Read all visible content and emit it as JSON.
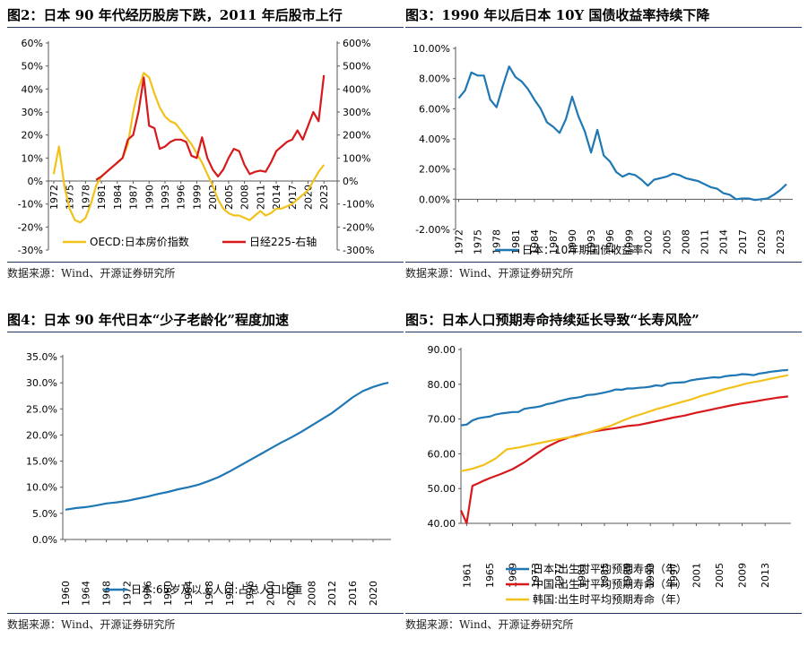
{
  "source_label": "数据来源：Wind、开源证券研究所",
  "chart_data": [
    {
      "id": "fig2",
      "type": "line",
      "title": "图2：日本 90 年代经历股房下跌，2011 年后股市上行",
      "x_ticks": [
        "1972",
        "1975",
        "1978",
        "1981",
        "1984",
        "1987",
        "1990",
        "1993",
        "1996",
        "1999",
        "2002",
        "2005",
        "2008",
        "2011",
        "2014",
        "2017",
        "2020",
        "2023"
      ],
      "y_left_ticks": [
        "-30%",
        "-20%",
        "-10%",
        "0%",
        "10%",
        "20%",
        "30%",
        "40%",
        "50%",
        "60%"
      ],
      "y_right_ticks": [
        "-300%",
        "-200%",
        "-100%",
        "0%",
        "100%",
        "200%",
        "300%",
        "400%",
        "500%",
        "600%"
      ],
      "ylim_left": [
        -30,
        60
      ],
      "ylim_right": [
        -300,
        600
      ],
      "series": [
        {
          "name": "OECD:日本房价指数",
          "axis": "left",
          "color": "#F2C21A",
          "x": [
            1972,
            1973,
            1974,
            1975,
            1976,
            1977,
            1978,
            1979,
            1980,
            1981,
            1982,
            1983,
            1984,
            1985,
            1986,
            1987,
            1988,
            1989,
            1990,
            1991,
            1992,
            1993,
            1994,
            1995,
            1996,
            1997,
            1998,
            1999,
            2000,
            2001,
            2002,
            2003,
            2004,
            2005,
            2006,
            2007,
            2008,
            2009,
            2010,
            2011,
            2012,
            2013,
            2014,
            2015,
            2016,
            2017,
            2018,
            2019,
            2020,
            2021,
            2022,
            2023
          ],
          "values": [
            3,
            15,
            -2,
            -12,
            -17,
            -18,
            -16,
            -10,
            -2,
            2,
            4,
            6,
            8,
            10,
            16,
            30,
            40,
            47,
            45,
            38,
            32,
            28,
            26,
            25,
            22,
            19,
            16,
            12,
            8,
            3,
            -2,
            -8,
            -12,
            -14,
            -15,
            -15,
            -16,
            -17,
            -15,
            -13,
            -15,
            -14,
            -12,
            -12,
            -11,
            -10,
            -8,
            -6,
            -4,
            0,
            4,
            7
          ]
        },
        {
          "name": "日经225-右轴",
          "axis": "right",
          "color": "#D7191C",
          "x": [
            1980,
            1981,
            1982,
            1983,
            1984,
            1985,
            1986,
            1987,
            1988,
            1989,
            1990,
            1991,
            1992,
            1993,
            1994,
            1995,
            1996,
            1997,
            1998,
            1999,
            2000,
            2001,
            2002,
            2003,
            2004,
            2005,
            2006,
            2007,
            2008,
            2009,
            2010,
            2011,
            2012,
            2013,
            2014,
            2015,
            2016,
            2017,
            2018,
            2019,
            2020,
            2021,
            2022,
            2023
          ],
          "values": [
            5,
            20,
            40,
            60,
            80,
            100,
            180,
            200,
            300,
            450,
            240,
            230,
            140,
            150,
            170,
            180,
            180,
            170,
            110,
            100,
            190,
            100,
            50,
            20,
            50,
            100,
            140,
            130,
            70,
            30,
            40,
            45,
            40,
            80,
            130,
            150,
            170,
            180,
            220,
            180,
            240,
            300,
            260,
            460
          ]
        }
      ]
    },
    {
      "id": "fig3",
      "type": "line",
      "title": "图3：1990 年以后日本 10Y 国债收益率持续下降",
      "x_ticks": [
        "1972",
        "1975",
        "1978",
        "1981",
        "1984",
        "1987",
        "1990",
        "1993",
        "1996",
        "1999",
        "2002",
        "2005",
        "2008",
        "2011",
        "2014",
        "2017",
        "2020",
        "2023"
      ],
      "y_ticks": [
        "-2.00%",
        "0.00%",
        "2.00%",
        "4.00%",
        "6.00%",
        "8.00%",
        "10.00%"
      ],
      "ylim": [
        -2,
        10
      ],
      "series": [
        {
          "name": "日本：10年期国债收益率",
          "color": "#1F77B4",
          "x": [
            1972,
            1973,
            1974,
            1975,
            1976,
            1977,
            1978,
            1979,
            1980,
            1981,
            1982,
            1983,
            1984,
            1985,
            1986,
            1987,
            1988,
            1989,
            1990,
            1991,
            1992,
            1993,
            1994,
            1995,
            1996,
            1997,
            1998,
            1999,
            2000,
            2001,
            2002,
            2003,
            2004,
            2005,
            2006,
            2007,
            2008,
            2009,
            2010,
            2011,
            2012,
            2013,
            2014,
            2015,
            2016,
            2017,
            2018,
            2019,
            2020,
            2021,
            2022,
            2023,
            2024
          ],
          "values": [
            6.7,
            7.2,
            8.4,
            8.2,
            8.2,
            6.6,
            6.1,
            7.5,
            8.8,
            8.1,
            7.8,
            7.3,
            6.6,
            6.0,
            5.1,
            4.8,
            4.4,
            5.3,
            6.8,
            5.5,
            4.5,
            3.1,
            4.6,
            2.9,
            2.5,
            1.8,
            1.5,
            1.7,
            1.6,
            1.3,
            0.9,
            1.3,
            1.4,
            1.5,
            1.7,
            1.6,
            1.4,
            1.3,
            1.2,
            1.0,
            0.8,
            0.7,
            0.4,
            0.3,
            0.0,
            0.05,
            0.05,
            -0.05,
            0.0,
            0.05,
            0.3,
            0.6,
            1.0
          ]
        }
      ]
    },
    {
      "id": "fig4",
      "type": "line",
      "title": "图4：日本 90 年代日本“少子老龄化”程度加速",
      "x_ticks": [
        "1960",
        "1964",
        "1968",
        "1972",
        "1976",
        "1980",
        "1984",
        "1988",
        "1992",
        "1996",
        "2000",
        "2004",
        "2008",
        "2012",
        "2016",
        "2020"
      ],
      "y_ticks": [
        "0.0%",
        "5.0%",
        "10.0%",
        "15.0%",
        "20.0%",
        "25.0%",
        "30.0%",
        "35.0%"
      ],
      "ylim": [
        0,
        35
      ],
      "series": [
        {
          "name": "日本:65岁及以上人口:占总人口比重",
          "color": "#1F77B4",
          "x": [
            1960,
            1962,
            1964,
            1966,
            1968,
            1970,
            1972,
            1974,
            1976,
            1978,
            1980,
            1982,
            1984,
            1986,
            1988,
            1990,
            1992,
            1994,
            1996,
            1998,
            2000,
            2002,
            2004,
            2006,
            2008,
            2010,
            2012,
            2014,
            2016,
            2018,
            2020,
            2022,
            2023
          ],
          "values": [
            5.7,
            6.0,
            6.2,
            6.5,
            6.9,
            7.1,
            7.4,
            7.8,
            8.2,
            8.7,
            9.1,
            9.6,
            10.0,
            10.5,
            11.2,
            12.0,
            13.0,
            14.1,
            15.2,
            16.3,
            17.4,
            18.5,
            19.5,
            20.6,
            21.8,
            23.0,
            24.2,
            25.7,
            27.2,
            28.4,
            29.2,
            29.8,
            30.0
          ]
        }
      ]
    },
    {
      "id": "fig5",
      "type": "line",
      "title": "图5：日本人口预期寿命持续延长导致“长寿风险”",
      "x_ticks": [
        "1961",
        "1965",
        "1969",
        "1973",
        "1977",
        "1981",
        "1985",
        "1989",
        "1993",
        "1997",
        "2001",
        "2005",
        "2009",
        "2013"
      ],
      "y_ticks": [
        "40.00",
        "50.00",
        "60.00",
        "70.00",
        "80.00",
        "90.00"
      ],
      "ylim": [
        40,
        90
      ],
      "series": [
        {
          "name": "日本:出生时平均预期寿命（年）",
          "color": "#1F77B4",
          "x": [
            1960,
            1961,
            1962,
            1963,
            1964,
            1965,
            1966,
            1967,
            1968,
            1969,
            1970,
            1971,
            1972,
            1973,
            1974,
            1975,
            1976,
            1977,
            1978,
            1979,
            1980,
            1981,
            1982,
            1983,
            1984,
            1985,
            1986,
            1987,
            1988,
            1989,
            1990,
            1991,
            1992,
            1993,
            1994,
            1995,
            1996,
            1997,
            1998,
            1999,
            2000,
            2001,
            2002,
            2003,
            2004,
            2005,
            2006,
            2007,
            2008,
            2009,
            2010,
            2011,
            2012,
            2013,
            2014,
            2015,
            2016,
            2017
          ],
          "values": [
            68.2,
            68.4,
            69.6,
            70.2,
            70.5,
            70.7,
            71.3,
            71.6,
            71.8,
            72.0,
            72.0,
            72.9,
            73.2,
            73.4,
            73.7,
            74.3,
            74.6,
            75.1,
            75.5,
            75.9,
            76.1,
            76.4,
            76.9,
            77.0,
            77.3,
            77.6,
            78.0,
            78.5,
            78.4,
            78.8,
            78.8,
            79.0,
            79.1,
            79.3,
            79.7,
            79.5,
            80.2,
            80.4,
            80.5,
            80.6,
            81.1,
            81.4,
            81.6,
            81.8,
            82.0,
            81.9,
            82.3,
            82.5,
            82.6,
            82.9,
            82.8,
            82.6,
            83.1,
            83.3,
            83.6,
            83.8,
            84.0,
            84.1
          ]
        },
        {
          "name": "中国:出生时平均预期寿命（年）",
          "color": "#D7191C",
          "x": [
            1960,
            1961,
            1962,
            1963,
            1964,
            1965,
            1967,
            1969,
            1971,
            1973,
            1975,
            1977,
            1979,
            1981,
            1983,
            1985,
            1987,
            1989,
            1991,
            1993,
            1995,
            1997,
            1999,
            2001,
            2003,
            2005,
            2007,
            2009,
            2011,
            2013,
            2015,
            2017
          ],
          "values": [
            43.7,
            40.0,
            50.8,
            51.5,
            52.3,
            53.0,
            54.2,
            55.6,
            57.5,
            59.8,
            62.0,
            63.6,
            64.8,
            65.6,
            66.4,
            66.9,
            67.4,
            68.0,
            68.3,
            69.0,
            69.7,
            70.4,
            71.0,
            71.8,
            72.5,
            73.2,
            73.9,
            74.5,
            75.0,
            75.6,
            76.1,
            76.5
          ]
        },
        {
          "name": "韩国:出生时平均预期寿命（年）",
          "color": "#F2C21A",
          "x": [
            1960,
            1962,
            1964,
            1966,
            1968,
            1970,
            1972,
            1974,
            1976,
            1978,
            1980,
            1982,
            1984,
            1986,
            1988,
            1990,
            1992,
            1994,
            1996,
            1998,
            2000,
            2002,
            2004,
            2006,
            2008,
            2010,
            2012,
            2014,
            2016,
            2017
          ],
          "values": [
            55.0,
            55.7,
            56.8,
            58.6,
            61.3,
            61.8,
            62.5,
            63.2,
            63.9,
            64.5,
            65.0,
            66.0,
            67.0,
            68.0,
            69.4,
            70.7,
            71.7,
            72.8,
            73.7,
            74.7,
            75.6,
            76.7,
            77.6,
            78.6,
            79.4,
            80.3,
            80.9,
            81.6,
            82.3,
            82.6
          ]
        }
      ]
    }
  ]
}
